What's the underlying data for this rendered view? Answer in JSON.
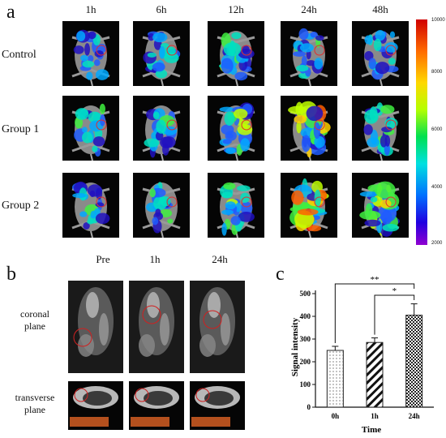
{
  "panel_a": {
    "letter": "a",
    "time_labels": [
      "1h",
      "6h",
      "12h",
      "24h",
      "48h"
    ],
    "row_labels": [
      "Control",
      "Group 1",
      "Group 2"
    ],
    "colorbar_ticks": [
      "10000",
      "8000",
      "6000",
      "4000",
      "2000"
    ]
  },
  "panel_b": {
    "letter": "b",
    "time_labels": [
      "Pre",
      "1h",
      "24h"
    ],
    "row_labels": [
      "coronal\nplane",
      "transverse\nplane"
    ]
  },
  "panel_c": {
    "letter": "c"
  },
  "chart_data": {
    "type": "bar",
    "categories": [
      "0h",
      "1h",
      "24h"
    ],
    "values": [
      250,
      285,
      405
    ],
    "errors": [
      18,
      20,
      50
    ],
    "xlabel": "Time",
    "ylabel": "Signal intensity",
    "ylim": [
      0,
      500
    ],
    "yticks": [
      "0",
      "100",
      "200",
      "300",
      "400",
      "500"
    ],
    "significance": [
      {
        "from": "0h",
        "to": "24h",
        "label": "**"
      },
      {
        "from": "1h",
        "to": "24h",
        "label": "*"
      }
    ],
    "colors": {
      "bars": "#222222",
      "fill": "#ffffff"
    }
  }
}
